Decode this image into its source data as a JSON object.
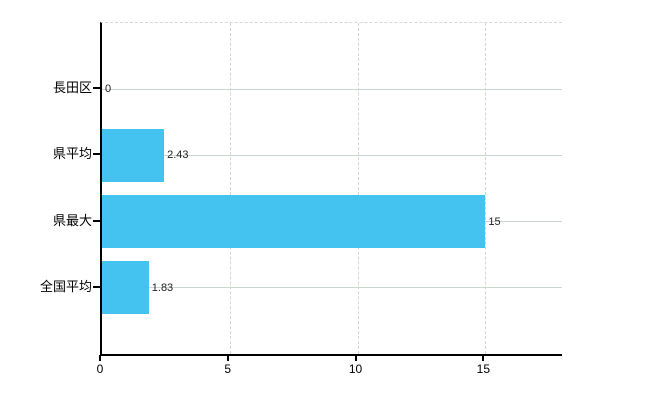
{
  "chart_data": {
    "type": "bar",
    "orientation": "horizontal",
    "title": "",
    "xlabel": "",
    "ylabel": "",
    "categories": [
      "長田区",
      "県平均",
      "県最大",
      "全国平均"
    ],
    "values": [
      0,
      2.43,
      15,
      1.83
    ],
    "value_labels": [
      "0",
      "2.43",
      "15",
      "1.83"
    ],
    "x_ticks": [
      0,
      5,
      10,
      15
    ],
    "x_tick_labels": [
      "0",
      "5",
      "10",
      "15"
    ],
    "xlim": [
      0,
      18
    ],
    "grid": {
      "horizontal": "solid line at each category row center",
      "vertical": "dashed lines at x ticks 5, 10, 15",
      "top_border": "dashed"
    },
    "legend_position": "none"
  },
  "colors": {
    "bar": "#44C2F0",
    "axis": "#000000",
    "h_gridline": "#ccd6cc",
    "v_gridline": "#d9d3d3",
    "top_border": "#d8d8d8",
    "category_text": "#000000",
    "value_text": "#222222",
    "background": "#ffffff"
  }
}
